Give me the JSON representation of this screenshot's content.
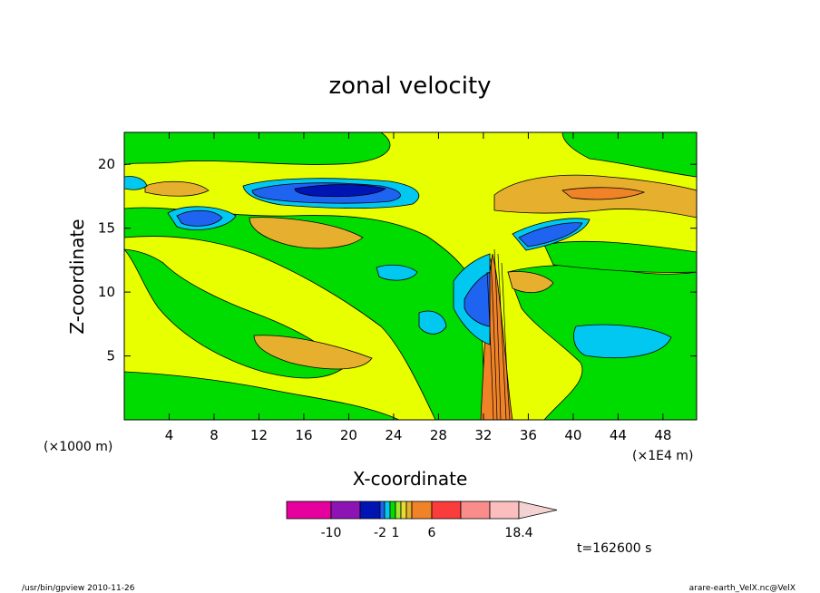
{
  "chart_data": {
    "type": "heatmap",
    "title": "zonal velocity",
    "xlabel": "X-coordinate",
    "ylabel": "Z-coordinate",
    "x_unit": "(×1E4 m)",
    "y_unit": "(×1000 m)",
    "xlim": [
      0,
      51
    ],
    "ylim": [
      0,
      22.5
    ],
    "x_ticks": [
      "4",
      "8",
      "12",
      "16",
      "20",
      "24",
      "28",
      "32",
      "36",
      "40",
      "44",
      "48"
    ],
    "x_tick_values": [
      4,
      8,
      12,
      16,
      20,
      24,
      28,
      32,
      36,
      40,
      44,
      48
    ],
    "y_ticks": [
      "5",
      "10",
      "15",
      "20"
    ],
    "y_tick_values": [
      5,
      10,
      15,
      20
    ],
    "colorbar": {
      "levels": [
        -14,
        -10,
        -6,
        -2,
        -1,
        0,
        1,
        2,
        3,
        4,
        6,
        10,
        14,
        18.4
      ],
      "colors": [
        "#e6009e",
        "#8c14b4",
        "#0014b4",
        "#1e64f0",
        "#00c8f0",
        "#00dc00",
        "#a0e632",
        "#e6dc32",
        "#e6af2d",
        "#f08228",
        "#fa3c3c",
        "#fa8c8c",
        "#fabebe",
        "#f5d2d2"
      ],
      "labels": [
        "-10",
        "-2",
        "1",
        "6",
        "18.4"
      ],
      "label_values": [
        -10,
        -2,
        1,
        6,
        18.4
      ]
    },
    "grid": false,
    "legend": "colorbar-bottom"
  },
  "footer": {
    "time": "t=162600 s",
    "left_info": "/usr/bin/gpview  2010-11-26",
    "right_info": "arare-earth_VelX.nc@VelX"
  }
}
